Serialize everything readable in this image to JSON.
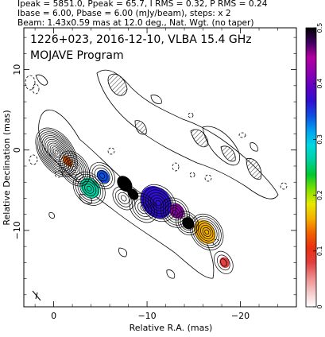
{
  "header": {
    "line1": "Ipeak = 5851.0, Ppeak = 65.7, I RMS = 0.32, P RMS = 0.24",
    "line2": "Ibase = 6.00, Pbase = 6.00 (mJy/beam), steps: x 2",
    "line3": "Beam: 1.43x0.59 mas at 12.0 deg., Nat. Wgt. (no taper)"
  },
  "chart_data": {
    "type": "heatmap",
    "title": "1226+023, 2016-12-10, VLBA 15.4 GHz",
    "subtitle": "MOJAVE Program",
    "xlabel": "Relative R.A. (mas)",
    "ylabel": "Relative Declination (mas)",
    "xlim": [
      3.2,
      -26.0
    ],
    "ylim": [
      -19.5,
      15.2
    ],
    "x_ticks": [
      0,
      -10,
      -20
    ],
    "x_tick_labels": [
      "0",
      "−10",
      "−20"
    ],
    "y_ticks": [
      10,
      0,
      -10
    ],
    "y_tick_labels": [
      "10",
      "0",
      "−10"
    ],
    "colorbar": {
      "min": 0,
      "max": 0.5,
      "ticks": [
        0,
        0.1,
        0.2,
        0.3,
        0.4,
        0.5
      ],
      "tick_labels": [
        "0",
        "0.1",
        "0.2",
        "0.3",
        "0.4",
        "0.5"
      ],
      "colors": [
        "#ffffff",
        "#f4c8c8",
        "#ee8a8a",
        "#e04040",
        "#e83010",
        "#f06000",
        "#f4b000",
        "#e8e800",
        "#80e000",
        "#00c830",
        "#00d0a0",
        "#00d8e0",
        "#00a0f0",
        "#1050e0",
        "#3010d0",
        "#6000c0",
        "#9000b0",
        "#b000a0",
        "#400060",
        "#000000"
      ]
    },
    "total_intensity_contours": [
      {
        "x": -0.3,
        "y": -0.3,
        "rx": 1.8,
        "ry": 3.4,
        "rot": -35,
        "n": 13
      },
      {
        "x": -2.2,
        "y": -2.3,
        "rx": 1.4,
        "ry": 2.4,
        "rot": -35,
        "n": 8
      },
      {
        "x": -3.8,
        "y": -4.8,
        "rx": 1.5,
        "ry": 2.3,
        "rot": -40,
        "n": 7
      },
      {
        "x": -5.2,
        "y": -3.2,
        "rx": 1.2,
        "ry": 1.8,
        "rot": -40,
        "n": 5
      },
      {
        "x": -7.5,
        "y": -6.0,
        "rx": 1.0,
        "ry": 1.6,
        "rot": -40,
        "n": 4
      },
      {
        "x": -9.6,
        "y": -7.2,
        "rx": 1.3,
        "ry": 2.0,
        "rot": -40,
        "n": 5
      },
      {
        "x": -11.2,
        "y": -6.6,
        "rx": 1.7,
        "ry": 2.5,
        "rot": -40,
        "n": 7
      },
      {
        "x": -13.0,
        "y": -7.8,
        "rx": 1.4,
        "ry": 2.0,
        "rot": -40,
        "n": 6
      },
      {
        "x": -14.3,
        "y": -9.1,
        "rx": 1.1,
        "ry": 1.6,
        "rot": -40,
        "n": 5
      },
      {
        "x": -16.4,
        "y": -10.2,
        "rx": 1.6,
        "ry": 2.4,
        "rot": -35,
        "n": 8
      },
      {
        "x": -18.2,
        "y": -14.0,
        "rx": 0.9,
        "ry": 1.5,
        "rot": -30,
        "n": 3
      }
    ],
    "polarized_intensity_blobs": [
      {
        "x": -1.5,
        "y": -1.4,
        "rx": 0.4,
        "ry": 0.8,
        "rot": -40,
        "v": 0.13
      },
      {
        "x": -3.9,
        "y": -4.7,
        "rx": 0.9,
        "ry": 1.4,
        "rot": -40,
        "v": 0.25
      },
      {
        "x": -5.3,
        "y": -3.3,
        "rx": 0.6,
        "ry": 0.9,
        "rot": -40,
        "v": 0.33
      },
      {
        "x": -7.6,
        "y": -4.2,
        "rx": 0.7,
        "ry": 1.1,
        "rot": -40,
        "v": 0.5
      },
      {
        "x": -8.5,
        "y": -5.5,
        "rx": 0.5,
        "ry": 0.8,
        "rot": -40,
        "v": 0.5
      },
      {
        "x": -11.0,
        "y": -6.5,
        "rx": 1.5,
        "ry": 2.2,
        "rot": -40,
        "v": 0.38
      },
      {
        "x": -13.2,
        "y": -7.6,
        "rx": 0.7,
        "ry": 1.0,
        "rot": -40,
        "v": 0.42
      },
      {
        "x": -14.4,
        "y": -9.1,
        "rx": 0.6,
        "ry": 0.8,
        "rot": -40,
        "v": 0.5
      },
      {
        "x": -16.2,
        "y": -10.2,
        "rx": 1.0,
        "ry": 1.6,
        "rot": -35,
        "v": 0.15
      },
      {
        "x": -18.3,
        "y": -14.0,
        "rx": 0.5,
        "ry": 0.7,
        "rot": -30,
        "v": 0.09
      }
    ]
  }
}
